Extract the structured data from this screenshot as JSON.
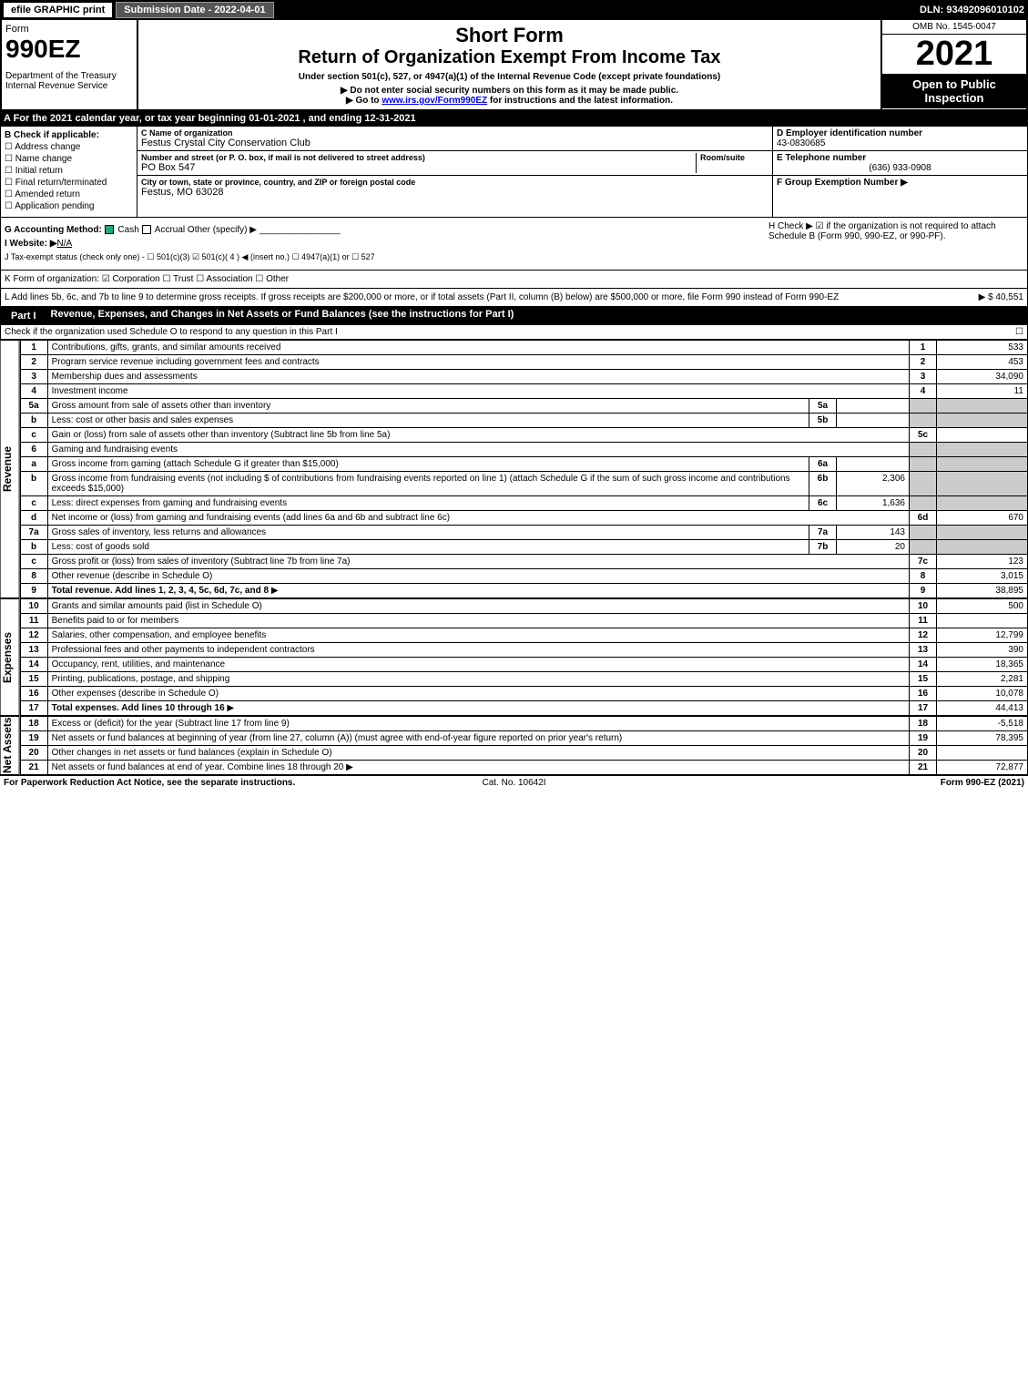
{
  "top": {
    "efile": "efile GRAPHIC print",
    "submission": "Submission Date - 2022-04-01",
    "dln": "DLN: 93492096010102"
  },
  "header": {
    "form_label": "Form",
    "form_num": "990EZ",
    "dept": "Department of the Treasury\nInternal Revenue Service",
    "short_form": "Short Form",
    "title": "Return of Organization Exempt From Income Tax",
    "sub": "Under section 501(c), 527, or 4947(a)(1) of the Internal Revenue Code (except private foundations)",
    "note1": "▶ Do not enter social security numbers on this form as it may be made public.",
    "note2": "▶ Go to www.irs.gov/Form990EZ for instructions and the latest information.",
    "omb": "OMB No. 1545-0047",
    "year": "2021",
    "open": "Open to Public Inspection"
  },
  "section_a": "A  For the 2021 calendar year, or tax year beginning 01-01-2021 , and ending 12-31-2021",
  "box_b": {
    "label": "B Check if applicable:",
    "items": [
      "Address change",
      "Name change",
      "Initial return",
      "Final return/terminated",
      "Amended return",
      "Application pending"
    ]
  },
  "box_c": {
    "name_lbl": "C Name of organization",
    "name": "Festus Crystal City Conservation Club",
    "addr_lbl": "Number and street (or P. O. box, if mail is not delivered to street address)",
    "room_lbl": "Room/suite",
    "addr": "PO Box 547",
    "city_lbl": "City or town, state or province, country, and ZIP or foreign postal code",
    "city": "Festus, MO  63028"
  },
  "box_d": {
    "ein_lbl": "D Employer identification number",
    "ein": "43-0830685",
    "tel_lbl": "E Telephone number",
    "tel": "(636) 933-0908",
    "grp_lbl": "F Group Exemption Number ▶"
  },
  "section_g": {
    "acct": "G Accounting Method:",
    "cash": "Cash",
    "accrual": "Accrual",
    "other": "Other (specify) ▶",
    "h": "H Check ▶ ☑ if the organization is not required to attach Schedule B (Form 990, 990-EZ, or 990-PF).",
    "website_lbl": "I Website: ▶",
    "website": "N/A",
    "j": "J Tax-exempt status (check only one) - ☐ 501(c)(3) ☑ 501(c)( 4 ) ◀ (insert no.) ☐ 4947(a)(1) or ☐ 527"
  },
  "section_k": "K Form of organization: ☑ Corporation  ☐ Trust  ☐ Association  ☐ Other",
  "section_l": {
    "text": "L Add lines 5b, 6c, and 7b to line 9 to determine gross receipts. If gross receipts are $200,000 or more, or if total assets (Part II, column (B) below) are $500,000 or more, file Form 990 instead of Form 990-EZ",
    "val": "▶ $ 40,551"
  },
  "part1": {
    "label": "Part I",
    "title": "Revenue, Expenses, and Changes in Net Assets or Fund Balances (see the instructions for Part I)",
    "check": "Check if the organization used Schedule O to respond to any question in this Part I",
    "check_val": "☐"
  },
  "side_labels": {
    "revenue": "Revenue",
    "expenses": "Expenses",
    "net": "Net Assets"
  },
  "rows": [
    {
      "n": "1",
      "d": "Contributions, gifts, grants, and similar amounts received",
      "num": "1",
      "v": "533"
    },
    {
      "n": "2",
      "d": "Program service revenue including government fees and contracts",
      "num": "2",
      "v": "453"
    },
    {
      "n": "3",
      "d": "Membership dues and assessments",
      "num": "3",
      "v": "34,090"
    },
    {
      "n": "4",
      "d": "Investment income",
      "num": "4",
      "v": "11"
    },
    {
      "n": "5a",
      "d": "Gross amount from sale of assets other than inventory",
      "sl": "5a",
      "sv": "",
      "num": "",
      "v": "",
      "shade": true
    },
    {
      "n": "b",
      "d": "Less: cost or other basis and sales expenses",
      "sl": "5b",
      "sv": "",
      "num": "",
      "v": "",
      "shade": true
    },
    {
      "n": "c",
      "d": "Gain or (loss) from sale of assets other than inventory (Subtract line 5b from line 5a)",
      "num": "5c",
      "v": ""
    },
    {
      "n": "6",
      "d": "Gaming and fundraising events",
      "num": "",
      "v": "",
      "shade": true
    },
    {
      "n": "a",
      "d": "Gross income from gaming (attach Schedule G if greater than $15,000)",
      "sl": "6a",
      "sv": "",
      "num": "",
      "v": "",
      "shade": true
    },
    {
      "n": "b",
      "d": "Gross income from fundraising events (not including $             of contributions from fundraising events reported on line 1) (attach Schedule G if the sum of such gross income and contributions exceeds $15,000)",
      "sl": "6b",
      "sv": "2,306",
      "num": "",
      "v": "",
      "shade": true
    },
    {
      "n": "c",
      "d": "Less: direct expenses from gaming and fundraising events",
      "sl": "6c",
      "sv": "1,636",
      "num": "",
      "v": "",
      "shade": true
    },
    {
      "n": "d",
      "d": "Net income or (loss) from gaming and fundraising events (add lines 6a and 6b and subtract line 6c)",
      "num": "6d",
      "v": "670"
    },
    {
      "n": "7a",
      "d": "Gross sales of inventory, less returns and allowances",
      "sl": "7a",
      "sv": "143",
      "num": "",
      "v": "",
      "shade": true
    },
    {
      "n": "b",
      "d": "Less: cost of goods sold",
      "sl": "7b",
      "sv": "20",
      "num": "",
      "v": "",
      "shade": true
    },
    {
      "n": "c",
      "d": "Gross profit or (loss) from sales of inventory (Subtract line 7b from line 7a)",
      "num": "7c",
      "v": "123"
    },
    {
      "n": "8",
      "d": "Other revenue (describe in Schedule O)",
      "num": "8",
      "v": "3,015"
    },
    {
      "n": "9",
      "d": "Total revenue. Add lines 1, 2, 3, 4, 5c, 6d, 7c, and 8",
      "num": "9",
      "v": "38,895",
      "bold": true,
      "arrow": true
    }
  ],
  "exp_rows": [
    {
      "n": "10",
      "d": "Grants and similar amounts paid (list in Schedule O)",
      "num": "10",
      "v": "500"
    },
    {
      "n": "11",
      "d": "Benefits paid to or for members",
      "num": "11",
      "v": ""
    },
    {
      "n": "12",
      "d": "Salaries, other compensation, and employee benefits",
      "num": "12",
      "v": "12,799"
    },
    {
      "n": "13",
      "d": "Professional fees and other payments to independent contractors",
      "num": "13",
      "v": "390"
    },
    {
      "n": "14",
      "d": "Occupancy, rent, utilities, and maintenance",
      "num": "14",
      "v": "18,365"
    },
    {
      "n": "15",
      "d": "Printing, publications, postage, and shipping",
      "num": "15",
      "v": "2,281"
    },
    {
      "n": "16",
      "d": "Other expenses (describe in Schedule O)",
      "num": "16",
      "v": "10,078"
    },
    {
      "n": "17",
      "d": "Total expenses. Add lines 10 through 16",
      "num": "17",
      "v": "44,413",
      "bold": true,
      "arrow": true
    }
  ],
  "net_rows": [
    {
      "n": "18",
      "d": "Excess or (deficit) for the year (Subtract line 17 from line 9)",
      "num": "18",
      "v": "-5,518"
    },
    {
      "n": "19",
      "d": "Net assets or fund balances at beginning of year (from line 27, column (A)) (must agree with end-of-year figure reported on prior year's return)",
      "num": "19",
      "v": "78,395"
    },
    {
      "n": "20",
      "d": "Other changes in net assets or fund balances (explain in Schedule O)",
      "num": "20",
      "v": ""
    },
    {
      "n": "21",
      "d": "Net assets or fund balances at end of year. Combine lines 18 through 20",
      "num": "21",
      "v": "72,877",
      "arrow": true
    }
  ],
  "footer": {
    "left": "For Paperwork Reduction Act Notice, see the separate instructions.",
    "mid": "Cat. No. 10642I",
    "right": "Form 990-EZ (2021)"
  }
}
